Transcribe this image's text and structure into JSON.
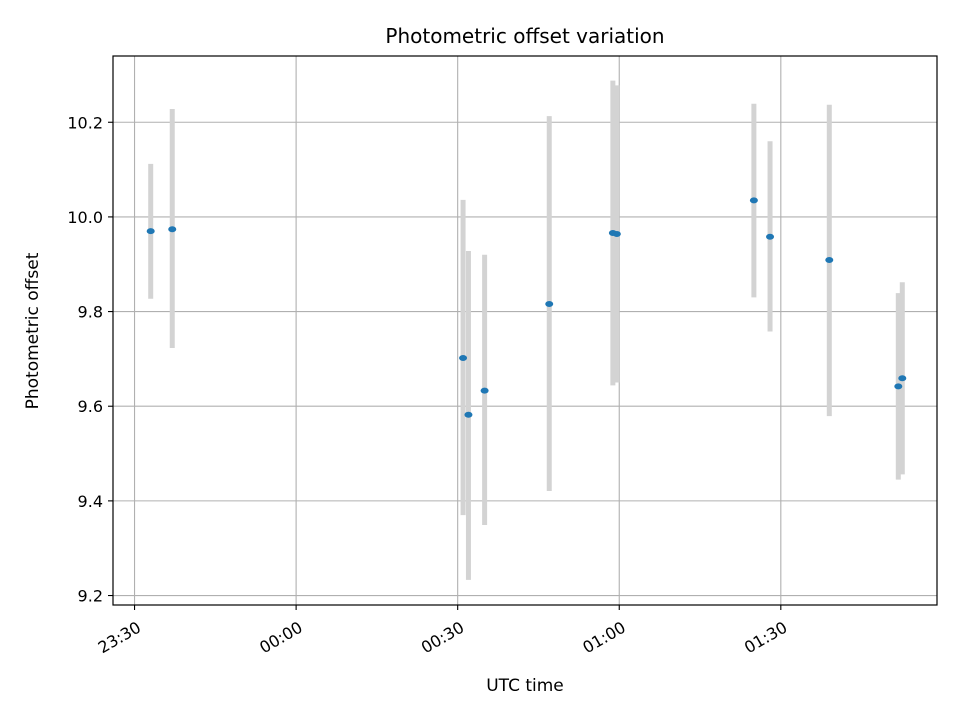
{
  "chart_data": {
    "type": "scatter",
    "title": "Photometric offset variation",
    "xlabel": "UTC time",
    "ylabel": "Photometric offset",
    "x_axis": {
      "kind": "time",
      "range": [
        "23:26",
        "01:59"
      ],
      "ticks": [
        "23:30",
        "00:00",
        "00:30",
        "01:00",
        "01:30"
      ]
    },
    "y_axis": {
      "range": [
        9.18,
        10.34
      ],
      "ticks": [
        "9.2",
        "9.4",
        "9.6",
        "9.8",
        "10.0",
        "10.2"
      ]
    },
    "grid": true,
    "legend": "none",
    "colors": {
      "point": "#1f77b4",
      "errorbar": "#d3d3d3",
      "grid": "#b0b0b0"
    },
    "points": [
      {
        "time": "23:33",
        "y": 9.97,
        "ylow": 9.827,
        "yhigh": 10.112
      },
      {
        "time": "23:37",
        "y": 9.974,
        "ylow": 9.723,
        "yhigh": 10.228
      },
      {
        "time": "00:31",
        "y": 9.702,
        "ylow": 9.37,
        "yhigh": 10.036
      },
      {
        "time": "00:32",
        "y": 9.582,
        "ylow": 9.233,
        "yhigh": 9.928
      },
      {
        "time": "00:35",
        "y": 9.633,
        "ylow": 9.349,
        "yhigh": 9.92
      },
      {
        "time": "00:47",
        "y": 9.816,
        "ylow": 9.421,
        "yhigh": 10.213
      },
      {
        "time": "00:59",
        "y": 9.966,
        "ylow": 9.644,
        "yhigh": 10.288
      },
      {
        "time": "00:59",
        "y": 9.964,
        "ylow": 9.65,
        "yhigh": 10.278
      },
      {
        "time": "01:25",
        "y": 10.035,
        "ylow": 9.83,
        "yhigh": 10.239
      },
      {
        "time": "01:28",
        "y": 9.958,
        "ylow": 9.758,
        "yhigh": 10.16
      },
      {
        "time": "01:39",
        "y": 9.909,
        "ylow": 9.579,
        "yhigh": 10.237
      },
      {
        "time": "01:52",
        "y": 9.642,
        "ylow": 9.445,
        "yhigh": 9.839
      },
      {
        "time": "01:52",
        "y": 9.659,
        "ylow": 9.456,
        "yhigh": 9.862
      }
    ]
  }
}
